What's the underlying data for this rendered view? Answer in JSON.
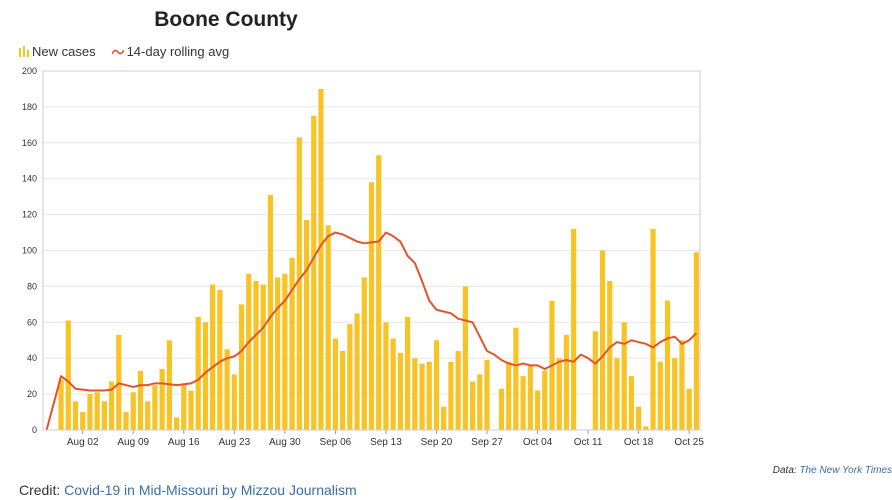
{
  "chart_data": {
    "type": "bar",
    "title": "Boone County",
    "legend": {
      "position": "top-left",
      "bars_label": "New cases",
      "line_label": "14-day rolling avg"
    },
    "colors": {
      "bars": "#f7c325",
      "line": "#e0562a",
      "grid": "#e6e6e6",
      "frame": "#cccccc"
    },
    "ylim": [
      0,
      200
    ],
    "yticks": [
      "0",
      "20",
      "40",
      "60",
      "80",
      "100",
      "120",
      "140",
      "160",
      "180",
      "200"
    ],
    "yticks_values": [
      0,
      20,
      40,
      60,
      80,
      100,
      120,
      140,
      160,
      180,
      200
    ],
    "start_date": "Jul 28",
    "end_date": "Oct 27",
    "xtick_labels": [
      "Aug 02",
      "Aug 09",
      "Aug 16",
      "Aug 23",
      "Aug 30",
      "Sep 06",
      "Sep 13",
      "Sep 20",
      "Sep 27",
      "Oct 04",
      "Oct 11",
      "Oct 18",
      "Oct 25"
    ],
    "xtick_day_index": [
      5,
      12,
      19,
      26,
      33,
      40,
      47,
      54,
      61,
      68,
      75,
      82,
      89
    ],
    "new_cases": [
      0,
      0,
      28,
      61,
      16,
      10,
      20,
      21,
      16,
      27,
      53,
      10,
      21,
      33,
      16,
      25,
      34,
      50,
      7,
      25,
      22,
      63,
      60,
      81,
      78,
      45,
      31,
      70,
      87,
      83,
      81,
      131,
      85,
      87,
      96,
      163,
      117,
      175,
      190,
      114,
      51,
      44,
      59,
      65,
      85,
      138,
      153,
      60,
      51,
      43,
      63,
      40,
      37,
      38,
      50,
      13,
      38,
      44,
      80,
      27,
      31,
      39,
      0,
      23,
      38,
      57,
      30,
      36,
      22,
      33,
      72,
      40,
      53,
      112,
      0,
      0,
      55,
      100,
      83,
      40,
      60,
      30,
      13,
      2,
      112,
      38,
      72,
      40,
      50,
      23,
      99
    ],
    "rolling_avg_14d": [
      0,
      15,
      30,
      27,
      23,
      22.5,
      22,
      22,
      22,
      22.5,
      26,
      25,
      24,
      25,
      25,
      26,
      26,
      25.5,
      25,
      25.5,
      26,
      28,
      32,
      35,
      38,
      40,
      41,
      44,
      49,
      53,
      57,
      63,
      68,
      72,
      78,
      84,
      89,
      96,
      103,
      108,
      110,
      109,
      107,
      105,
      104,
      104.5,
      105,
      110,
      108,
      105,
      97,
      93,
      83,
      72,
      67,
      66,
      65,
      62,
      61,
      60,
      52,
      44,
      42,
      39,
      37,
      36,
      37,
      36,
      36,
      34,
      36,
      38,
      39,
      38,
      42,
      40,
      37,
      41,
      46,
      49,
      48,
      50,
      49,
      48,
      46,
      49,
      51,
      52,
      48,
      50,
      54
    ]
  },
  "source": {
    "prefix": "Data: ",
    "link_text": "The New York Times"
  },
  "credit": {
    "prefix": "Credit: ",
    "link_text": "Covid-19 in Mid-Missouri by Mizzou Journalism"
  }
}
